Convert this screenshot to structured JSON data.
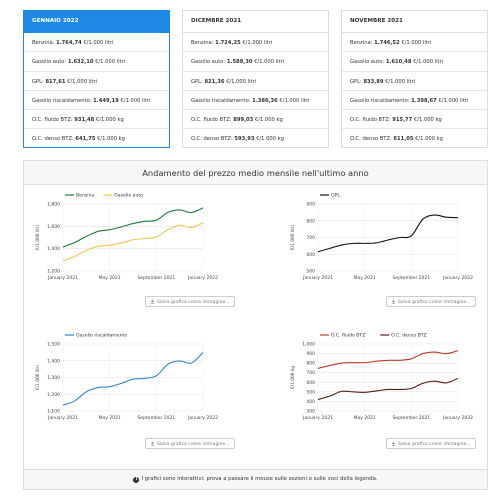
{
  "cards": [
    {
      "title": "GENNAIO 2022",
      "active": true,
      "rows": [
        {
          "label": "Benzina: ",
          "value": "1.764,74",
          "unit": " €/1.000 litri"
        },
        {
          "label": "Gasolio auto: ",
          "value": "1.632,10",
          "unit": " €/1.000 litri"
        },
        {
          "label": "GPL: ",
          "value": "817,61",
          "unit": " €/1.000 litri"
        },
        {
          "label": "Gasolio riscaldamento: ",
          "value": "1.449,19",
          "unit": " €/1.000 litri"
        },
        {
          "label": "O.C. fluido BTZ: ",
          "value": "931,48",
          "unit": " €/1.000 kg"
        },
        {
          "label": "O.C. denso BTZ: ",
          "value": "641,75",
          "unit": " €/1.000 kg"
        }
      ]
    },
    {
      "title": "DICEMBRE 2021",
      "active": false,
      "rows": [
        {
          "label": "Benzina: ",
          "value": "1.724,25",
          "unit": " €/1.000 litri"
        },
        {
          "label": "Gasolio auto: ",
          "value": "1.589,30",
          "unit": " €/1.000 litri"
        },
        {
          "label": "GPL: ",
          "value": "821,36",
          "unit": " €/1.000 litri"
        },
        {
          "label": "Gasolio riscaldamento: ",
          "value": "1.386,36",
          "unit": " €/1.000 litri"
        },
        {
          "label": "O.C. fluido BTZ: ",
          "value": "899,03",
          "unit": " €/1.000 kg"
        },
        {
          "label": "O.C. denso BTZ: ",
          "value": "593,93",
          "unit": " €/1.000 kg"
        }
      ]
    },
    {
      "title": "NOVEMBRE 2021",
      "active": false,
      "rows": [
        {
          "label": "Benzina: ",
          "value": "1.746,52",
          "unit": " €/1.000 litri"
        },
        {
          "label": "Gasolio auto: ",
          "value": "1.610,48",
          "unit": " €/1.000 litri"
        },
        {
          "label": "GPL: ",
          "value": "833,89",
          "unit": " €/1.000 litri"
        },
        {
          "label": "Gasolio riscaldamento: ",
          "value": "1.398,67",
          "unit": " €/1.000 litri"
        },
        {
          "label": "O.C. fluido BTZ: ",
          "value": "915,77",
          "unit": " €/1.000 kg"
        },
        {
          "label": "O.C. denso BTZ: ",
          "value": "611,05",
          "unit": " €/1.000 kg"
        }
      ]
    }
  ],
  "panel": {
    "title": "Andamento del prezzo medio mensile nell'ultimo anno",
    "footer": "I grafici sono interattivi: prova a passare il mouse sulle sezioni o sulle voci della legenda.",
    "save_label": "Salva grafico come immagine..."
  },
  "colors": {
    "accent": "#1e88e5",
    "benzina": "#1e7a3c",
    "gasolio": "#f2c94c",
    "gpl": "#111111",
    "risc": "#2f86c8",
    "fluido": "#c0392b",
    "denso": "#5a1a12"
  },
  "chart_data": [
    {
      "type": "line",
      "x": [
        "Jan 2021",
        "Feb 2021",
        "Mar 2021",
        "Apr 2021",
        "May 2021",
        "Jun 2021",
        "Jul 2021",
        "Aug 2021",
        "Sep 2021",
        "Oct 2021",
        "Nov 2021",
        "Dec 2021",
        "Jan 2022"
      ],
      "xticks": [
        "January 2021",
        "May 2021",
        "September 2021",
        "January 2022"
      ],
      "ylabel": "€/1.000 litri",
      "ylim": [
        1200,
        1800
      ],
      "yticks": [
        "1,200",
        "1,400",
        "1,600",
        "1,800"
      ],
      "legend": "top-left",
      "series": [
        {
          "name": "Benzina",
          "color": "#1e7a3c",
          "values": [
            1415,
            1455,
            1510,
            1555,
            1570,
            1595,
            1625,
            1645,
            1655,
            1725,
            1747,
            1724,
            1765
          ]
        },
        {
          "name": "Gasolio auto",
          "color": "#f2c94c",
          "values": [
            1290,
            1330,
            1385,
            1420,
            1430,
            1450,
            1480,
            1490,
            1505,
            1570,
            1610,
            1589,
            1632
          ]
        }
      ]
    },
    {
      "type": "line",
      "x": [
        "Jan 2021",
        "Feb 2021",
        "Mar 2021",
        "Apr 2021",
        "May 2021",
        "Jun 2021",
        "Jul 2021",
        "Aug 2021",
        "Sep 2021",
        "Oct 2021",
        "Nov 2021",
        "Dec 2021",
        "Jan 2022"
      ],
      "xticks": [
        "January 2021",
        "May 2021",
        "September 2021",
        "January 2022"
      ],
      "ylabel": "€/1.000 litri",
      "ylim": [
        500,
        900
      ],
      "yticks": [
        "500",
        "600",
        "700",
        "800",
        "900"
      ],
      "legend": "top-left",
      "series": [
        {
          "name": "GPL",
          "color": "#111111",
          "values": [
            615,
            635,
            655,
            665,
            665,
            668,
            685,
            700,
            710,
            810,
            834,
            821,
            818
          ]
        }
      ]
    },
    {
      "type": "line",
      "x": [
        "Jan 2021",
        "Feb 2021",
        "Mar 2021",
        "Apr 2021",
        "May 2021",
        "Jun 2021",
        "Jul 2021",
        "Aug 2021",
        "Sep 2021",
        "Oct 2021",
        "Nov 2021",
        "Dec 2021",
        "Jan 2022"
      ],
      "xticks": [
        "January 2021",
        "May 2021",
        "September 2021",
        "January 2022"
      ],
      "ylabel": "€/1.000 litri",
      "ylim": [
        1100,
        1500
      ],
      "yticks": [
        "1,100",
        "1,200",
        "1,300",
        "1,400",
        "1,500"
      ],
      "legend": "top-left",
      "series": [
        {
          "name": "Gasolio riscaldamento",
          "color": "#2f86c8",
          "values": [
            1135,
            1160,
            1215,
            1240,
            1245,
            1265,
            1290,
            1295,
            1310,
            1380,
            1399,
            1386,
            1449
          ]
        }
      ]
    },
    {
      "type": "line",
      "x": [
        "Jan 2021",
        "Feb 2021",
        "Mar 2021",
        "Apr 2021",
        "May 2021",
        "Jun 2021",
        "Jul 2021",
        "Aug 2021",
        "Sep 2021",
        "Oct 2021",
        "Nov 2021",
        "Dec 2021",
        "Jan 2022"
      ],
      "xticks": [
        "January 2021",
        "May 2021",
        "September 2021",
        "January 2022"
      ],
      "ylabel": "€/1.000 kg",
      "ylim": [
        300,
        1000
      ],
      "yticks": [
        "300",
        "400",
        "500",
        "600",
        "700",
        "800",
        "900",
        "1,000"
      ],
      "legend": "top-left",
      "series": [
        {
          "name": "O.C. fluido BTZ",
          "color": "#c0392b",
          "values": [
            745,
            775,
            800,
            805,
            805,
            820,
            830,
            830,
            845,
            900,
            916,
            899,
            931
          ]
        },
        {
          "name": "O.C. denso BTZ",
          "color": "#5a1a12",
          "values": [
            420,
            455,
            505,
            500,
            495,
            510,
            525,
            525,
            535,
            590,
            611,
            594,
            642
          ]
        }
      ]
    }
  ]
}
